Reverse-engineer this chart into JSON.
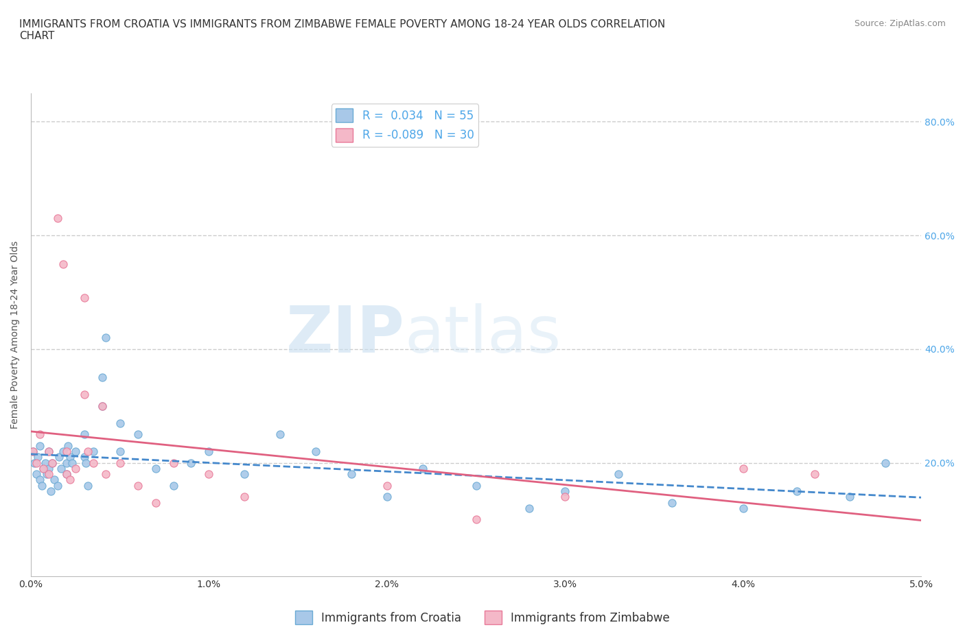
{
  "title": "IMMIGRANTS FROM CROATIA VS IMMIGRANTS FROM ZIMBABWE FEMALE POVERTY AMONG 18-24 YEAR OLDS CORRELATION\nCHART",
  "source_text": "Source: ZipAtlas.com",
  "ylabel": "Female Poverty Among 18-24 Year Olds",
  "xlim": [
    0.0,
    0.05
  ],
  "ylim": [
    0.0,
    0.85
  ],
  "xtick_labels": [
    "0.0%",
    "1.0%",
    "2.0%",
    "3.0%",
    "4.0%",
    "5.0%"
  ],
  "xtick_values": [
    0.0,
    0.01,
    0.02,
    0.03,
    0.04,
    0.05
  ],
  "ytick_labels": [
    "20.0%",
    "40.0%",
    "60.0%",
    "80.0%"
  ],
  "ytick_values": [
    0.2,
    0.4,
    0.6,
    0.8
  ],
  "croatia_color": "#a8c8e8",
  "croatia_edge_color": "#6aaad4",
  "zimbabwe_color": "#f4b8c8",
  "zimbabwe_edge_color": "#e87898",
  "croatia_R": 0.034,
  "croatia_N": 55,
  "zimbabwe_R": -0.089,
  "zimbabwe_N": 30,
  "legend_label_croatia": "Immigrants from Croatia",
  "legend_label_zimbabwe": "Immigrants from Zimbabwe",
  "watermark_zip": "ZIP",
  "watermark_atlas": "atlas",
  "croatia_x": [
    0.0001,
    0.0002,
    0.0003,
    0.0004,
    0.0005,
    0.0005,
    0.0006,
    0.0007,
    0.0008,
    0.0009,
    0.001,
    0.001,
    0.0011,
    0.0012,
    0.0013,
    0.0015,
    0.0016,
    0.0017,
    0.0018,
    0.002,
    0.002,
    0.0021,
    0.0022,
    0.0023,
    0.0025,
    0.003,
    0.003,
    0.0031,
    0.0032,
    0.0035,
    0.004,
    0.004,
    0.0042,
    0.005,
    0.005,
    0.006,
    0.007,
    0.008,
    0.009,
    0.01,
    0.012,
    0.014,
    0.016,
    0.018,
    0.02,
    0.022,
    0.025,
    0.028,
    0.03,
    0.033,
    0.036,
    0.04,
    0.043,
    0.046,
    0.048
  ],
  "croatia_y": [
    0.22,
    0.2,
    0.18,
    0.21,
    0.23,
    0.17,
    0.16,
    0.19,
    0.2,
    0.18,
    0.22,
    0.19,
    0.15,
    0.2,
    0.17,
    0.16,
    0.21,
    0.19,
    0.22,
    0.2,
    0.18,
    0.23,
    0.21,
    0.2,
    0.22,
    0.25,
    0.21,
    0.2,
    0.16,
    0.22,
    0.3,
    0.35,
    0.42,
    0.27,
    0.22,
    0.25,
    0.19,
    0.16,
    0.2,
    0.22,
    0.18,
    0.25,
    0.22,
    0.18,
    0.14,
    0.19,
    0.16,
    0.12,
    0.15,
    0.18,
    0.13,
    0.12,
    0.15,
    0.14,
    0.2
  ],
  "zimbabwe_x": [
    0.0001,
    0.0003,
    0.0005,
    0.0007,
    0.001,
    0.001,
    0.0012,
    0.0015,
    0.0018,
    0.002,
    0.002,
    0.0022,
    0.0025,
    0.003,
    0.003,
    0.0032,
    0.0035,
    0.004,
    0.0042,
    0.005,
    0.006,
    0.007,
    0.008,
    0.01,
    0.012,
    0.02,
    0.025,
    0.03,
    0.04,
    0.044
  ],
  "zimbabwe_y": [
    0.22,
    0.2,
    0.25,
    0.19,
    0.22,
    0.18,
    0.2,
    0.63,
    0.55,
    0.22,
    0.18,
    0.17,
    0.19,
    0.49,
    0.32,
    0.22,
    0.2,
    0.3,
    0.18,
    0.2,
    0.16,
    0.13,
    0.2,
    0.18,
    0.14,
    0.16,
    0.1,
    0.14,
    0.19,
    0.18
  ],
  "title_fontsize": 11,
  "axis_label_fontsize": 10,
  "tick_fontsize": 10,
  "legend_fontsize": 12,
  "marker_size": 65,
  "bg_color": "#ffffff",
  "grid_color": "#cccccc",
  "ytick_color": "#4da6e8",
  "croatia_trend_color": "#4488cc",
  "zimbabwe_trend_color": "#e06080"
}
